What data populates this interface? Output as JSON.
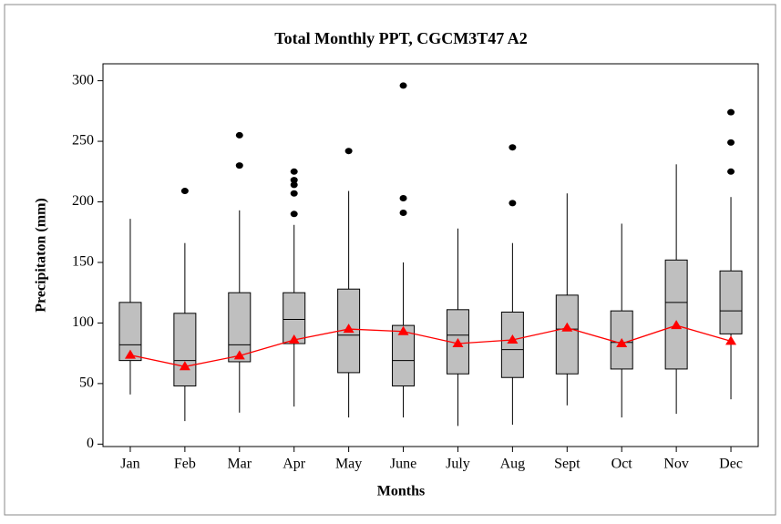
{
  "chart_data": {
    "type": "box",
    "title": "Total Monthly PPT, CGCM3T47 A2",
    "x_label": "Months",
    "y_label": "Precipitaton (mm)",
    "categories": [
      "Jan",
      "Feb",
      "Mar",
      "Apr",
      "May",
      "June",
      "July",
      "Aug",
      "Sept",
      "Oct",
      "Nov",
      "Dec"
    ],
    "whisker_low": [
      41,
      19,
      26,
      31,
      22,
      22,
      15,
      16,
      32,
      22,
      25,
      37
    ],
    "q1": [
      69,
      48,
      68,
      83,
      59,
      48,
      58,
      55,
      58,
      62,
      62,
      91
    ],
    "median": [
      82,
      69,
      82,
      103,
      90,
      69,
      90,
      78,
      95,
      84,
      117,
      110
    ],
    "q3": [
      117,
      108,
      125,
      125,
      128,
      98,
      111,
      109,
      123,
      110,
      152,
      143
    ],
    "whisker_high": [
      186,
      166,
      193,
      181,
      209,
      150,
      178,
      166,
      207,
      182,
      231,
      204
    ],
    "mean": [
      73.5,
      64,
      73,
      86,
      95,
      93,
      83,
      86,
      96,
      83,
      98,
      85
    ],
    "outliers": [
      [],
      [
        209
      ],
      [
        230,
        255
      ],
      [
        190,
        207,
        214,
        218,
        225
      ],
      [
        242
      ],
      [
        191,
        203,
        296
      ],
      [],
      [
        199,
        245
      ],
      [],
      [],
      [],
      [
        225,
        249,
        274
      ]
    ],
    "box_color": "#bfbfbf",
    "mean_color": "#ff0000",
    "ylim": [
      -2,
      314
    ],
    "yticks": [
      0,
      50,
      100,
      150,
      200,
      250,
      300
    ]
  }
}
